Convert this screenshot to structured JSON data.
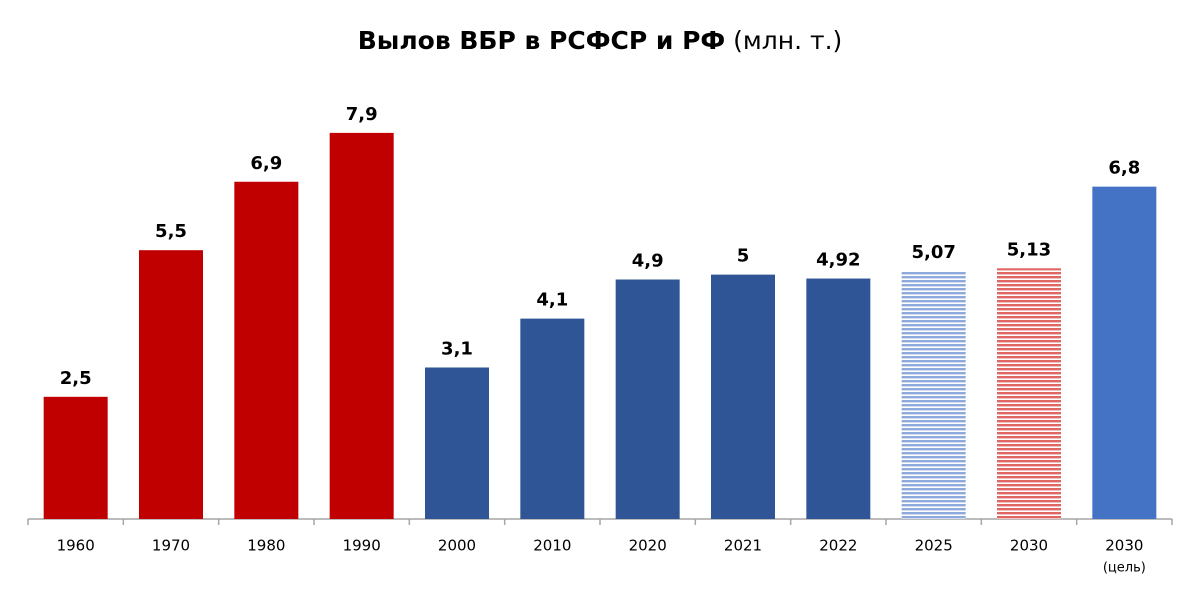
{
  "chart_data": {
    "type": "bar",
    "title": "Вылов ВБР в РСФСР и РФ",
    "title_unit": "(млн. т.)",
    "categories": [
      "1960",
      "1970",
      "1980",
      "1990",
      "2000",
      "2010",
      "2020",
      "2021",
      "2022",
      "2025",
      "2030",
      "2030"
    ],
    "category_notes": [
      null,
      null,
      null,
      null,
      null,
      null,
      null,
      null,
      null,
      null,
      null,
      "(цель)"
    ],
    "values": [
      2.5,
      5.5,
      6.9,
      7.9,
      3.1,
      4.1,
      4.9,
      5,
      4.92,
      5.07,
      5.13,
      6.8
    ],
    "value_labels": [
      "2,5",
      "5,5",
      "6,9",
      "7,9",
      "3,1",
      "4,1",
      "4,9",
      "5",
      "4,92",
      "5,07",
      "5,13",
      "6,8"
    ],
    "colors": [
      "#c00000",
      "#c00000",
      "#c00000",
      "#c00000",
      "#2f5597",
      "#2f5597",
      "#2f5597",
      "#2f5597",
      "#2f5597",
      "#8ea9db",
      "#e06666",
      "#4472c4"
    ],
    "hatched": [
      false,
      false,
      false,
      false,
      false,
      false,
      false,
      false,
      false,
      true,
      true,
      false
    ],
    "ylim": [
      0,
      8
    ]
  }
}
